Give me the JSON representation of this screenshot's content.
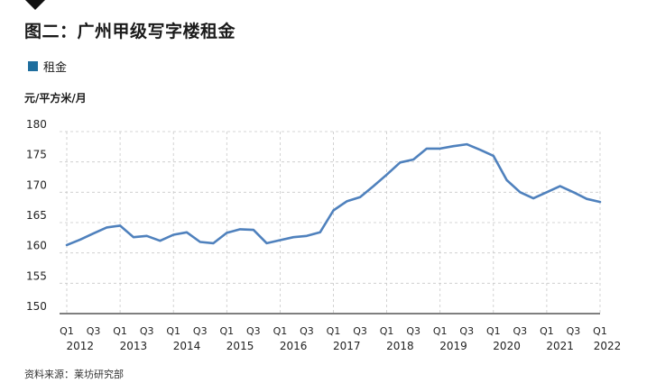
{
  "header": {
    "title": "图二：广州甲级写字楼租金",
    "marker_icon": "down-triangle-icon"
  },
  "legend": {
    "label": "租金",
    "color": "#1f6e9e"
  },
  "unit_label": "元/平方米/月",
  "source": "资料来源：莱坊研究部",
  "chart_data": {
    "type": "line",
    "title": "图二：广州甲级写字楼租金",
    "ylabel": "元/平方米/月",
    "xlabel": "",
    "ylim": [
      150,
      180
    ],
    "y_ticks": [
      150,
      155,
      160,
      165,
      170,
      175,
      180
    ],
    "grid": "vertical-and-horizontal-dashed",
    "legend_position": "top-left",
    "line_color": "#4f81bd",
    "x_quarter_labels": [
      "Q1",
      "Q3",
      "Q1",
      "Q3",
      "Q1",
      "Q3",
      "Q1",
      "Q3",
      "Q1",
      "Q3",
      "Q1",
      "Q3",
      "Q1",
      "Q3",
      "Q1",
      "Q3",
      "Q1",
      "Q3",
      "Q1",
      "Q3",
      "Q1"
    ],
    "x_year_labels": [
      "2012",
      "2013",
      "2014",
      "2015",
      "2016",
      "2017",
      "2018",
      "2019",
      "2020",
      "2021",
      "2022"
    ],
    "series": [
      {
        "name": "租金",
        "x": [
          "2012Q1",
          "2012Q2",
          "2012Q3",
          "2012Q4",
          "2013Q1",
          "2013Q2",
          "2013Q3",
          "2013Q4",
          "2014Q1",
          "2014Q2",
          "2014Q3",
          "2014Q4",
          "2015Q1",
          "2015Q2",
          "2015Q3",
          "2015Q4",
          "2016Q1",
          "2016Q2",
          "2016Q3",
          "2016Q4",
          "2017Q1",
          "2017Q2",
          "2017Q3",
          "2017Q4",
          "2018Q1",
          "2018Q2",
          "2018Q3",
          "2018Q4",
          "2019Q1",
          "2019Q2",
          "2019Q3",
          "2019Q4",
          "2020Q1",
          "2020Q2",
          "2020Q3",
          "2020Q4",
          "2021Q1",
          "2021Q2",
          "2021Q3",
          "2021Q4",
          "2022Q1"
        ],
        "values": [
          161.3,
          162.2,
          163.2,
          164.2,
          164.5,
          162.6,
          162.8,
          162.0,
          163.0,
          163.4,
          161.8,
          161.6,
          163.3,
          163.9,
          163.8,
          161.6,
          162.1,
          162.6,
          162.8,
          163.4,
          167.0,
          168.5,
          169.2,
          171.0,
          172.9,
          174.9,
          175.4,
          177.2,
          177.2,
          177.6,
          177.9,
          177.0,
          176.0,
          172.0,
          170.0,
          169.0,
          170.0,
          171.0,
          170.0,
          168.9,
          168.4
        ]
      }
    ]
  }
}
